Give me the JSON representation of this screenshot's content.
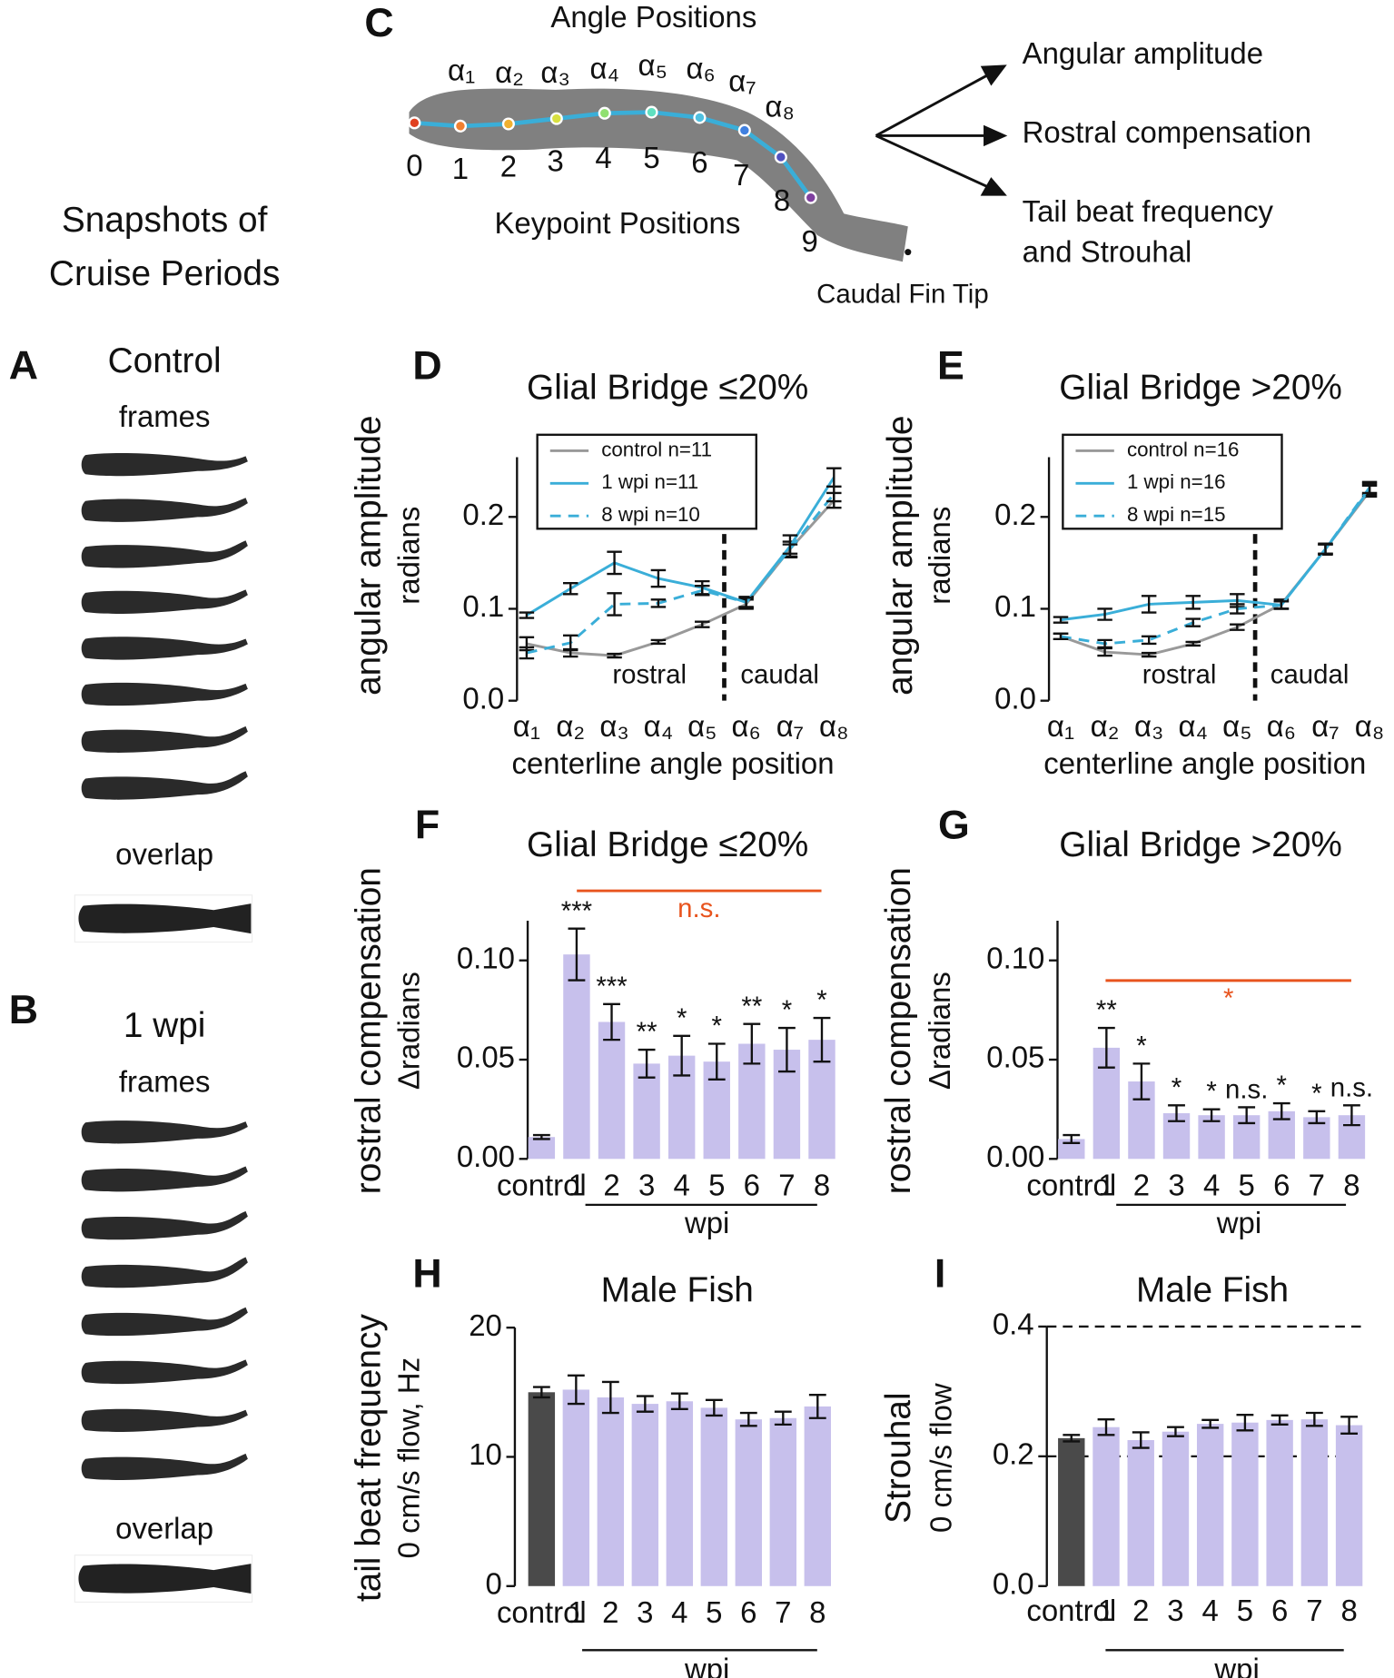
{
  "left_column": {
    "heading": [
      "Snapshots of",
      "Cruise Periods"
    ],
    "panel_a": {
      "letter": "A",
      "title": "Control",
      "frames_label": "frames",
      "overlap_label": "overlap"
    },
    "panel_b": {
      "letter": "B",
      "title": "1 wpi",
      "frames_label": "frames",
      "overlap_label": "overlap"
    }
  },
  "diagram": {
    "letter": "C",
    "angle_title": "Angle Positions",
    "keypoint_title": "Keypoint Positions",
    "angle_labels": [
      "α₁",
      "α₂",
      "α₃",
      "α₄",
      "α₅",
      "α₆",
      "α₇",
      "α₈"
    ],
    "keypoint_labels": [
      "0",
      "1",
      "2",
      "3",
      "4",
      "5",
      "6",
      "7",
      "8",
      "9"
    ],
    "fin_tip_label": "Caudal Fin Tip",
    "outputs": [
      [
        "Angular amplitude"
      ],
      [
        "Rostral compensation"
      ],
      [
        "Tail beat frequency",
        "and Strouhal"
      ]
    ]
  },
  "chart_data": [
    {
      "type": "line",
      "panel_label": "D",
      "title": "Glial Bridge ≤20%",
      "y_label": [
        "angular amplitude",
        "radians"
      ],
      "x_label": "centerline angle position",
      "categories": [
        "α₁",
        "α₂",
        "α₃",
        "α₄",
        "α₅",
        "α₆",
        "α₇",
        "α₈"
      ],
      "region_labels": [
        "rostral",
        "caudal"
      ],
      "ylim": [
        0,
        0.265
      ],
      "yticks": [
        {
          "value": 0,
          "label": "0.0"
        },
        {
          "value": 0.1,
          "label": "0.1"
        },
        {
          "value": 0.2,
          "label": "0.2"
        }
      ],
      "series": [
        {
          "name": "control n=11",
          "color": "#999999",
          "dash": false,
          "values": [
            0.062,
            0.052,
            0.049,
            0.064,
            0.083,
            0.105,
            0.165,
            0.218
          ],
          "errors": [
            0.007,
            0.004,
            0.002,
            0.002,
            0.003,
            0.005,
            0.008,
            0.008
          ]
        },
        {
          "name": "1 wpi n=11",
          "color": "#3aaed8",
          "dash": false,
          "values": [
            0.093,
            0.122,
            0.15,
            0.133,
            0.123,
            0.107,
            0.168,
            0.243
          ],
          "errors": [
            0.003,
            0.006,
            0.012,
            0.009,
            0.007,
            0.006,
            0.012,
            0.01
          ]
        },
        {
          "name": "8 wpi n=10",
          "color": "#3aaed8",
          "dash": true,
          "values": [
            0.052,
            0.063,
            0.105,
            0.106,
            0.12,
            0.107,
            0.165,
            0.225
          ],
          "errors": [
            0.006,
            0.008,
            0.012,
            0.004,
            0.005,
            0.005,
            0.005,
            0.008
          ]
        }
      ]
    },
    {
      "type": "line",
      "panel_label": "E",
      "title": "Glial Bridge >20%",
      "y_label": [
        "angular amplitude",
        "radians"
      ],
      "x_label": "centerline angle position",
      "categories": [
        "α₁",
        "α₂",
        "α₃",
        "α₄",
        "α₅",
        "α₆",
        "α₇",
        "α₈"
      ],
      "region_labels": [
        "rostral",
        "caudal"
      ],
      "ylim": [
        0,
        0.265
      ],
      "yticks": [
        {
          "value": 0,
          "label": "0.0"
        },
        {
          "value": 0.1,
          "label": "0.1"
        },
        {
          "value": 0.2,
          "label": "0.2"
        }
      ],
      "series": [
        {
          "name": "control n=16",
          "color": "#999999",
          "dash": false,
          "values": [
            0.07,
            0.053,
            0.05,
            0.062,
            0.08,
            0.105,
            0.165,
            0.228
          ],
          "errors": [
            0.003,
            0.004,
            0.002,
            0.002,
            0.003,
            0.005,
            0.005,
            0.006
          ]
        },
        {
          "name": "1 wpi n=16",
          "color": "#3aaed8",
          "dash": false,
          "values": [
            0.088,
            0.094,
            0.105,
            0.107,
            0.109,
            0.104,
            0.165,
            0.23
          ],
          "errors": [
            0.003,
            0.006,
            0.009,
            0.007,
            0.007,
            0.004,
            0.006,
            0.006
          ]
        },
        {
          "name": "8 wpi n=15",
          "color": "#3aaed8",
          "dash": true,
          "values": [
            0.07,
            0.062,
            0.066,
            0.085,
            0.1,
            0.104,
            0.165,
            0.232
          ],
          "errors": [
            0.003,
            0.004,
            0.004,
            0.004,
            0.005,
            0.004,
            0.005,
            0.006
          ]
        }
      ]
    },
    {
      "type": "bar",
      "panel_label": "F",
      "title": "Glial Bridge ≤20%",
      "y_label": [
        "rostral compensation",
        "Δradians"
      ],
      "x_label": "wpi",
      "categories": [
        "control",
        "1",
        "2",
        "3",
        "4",
        "5",
        "6",
        "7",
        "8"
      ],
      "values": [
        0.011,
        0.103,
        0.069,
        0.048,
        0.052,
        0.049,
        0.058,
        0.055,
        0.06
      ],
      "errors": [
        0.001,
        0.013,
        0.009,
        0.007,
        0.01,
        0.009,
        0.01,
        0.011,
        0.011
      ],
      "significance": [
        null,
        "***",
        "***",
        "**",
        "*",
        "*",
        "**",
        "*",
        "*"
      ],
      "colors": [
        "#c7c0ec",
        "#c7c0ec",
        "#c7c0ec",
        "#c7c0ec",
        "#c7c0ec",
        "#c7c0ec",
        "#c7c0ec",
        "#c7c0ec",
        "#c7c0ec"
      ],
      "bracket": {
        "label": "n.s.",
        "color": "#e8541e"
      },
      "ylim": [
        0,
        0.12
      ],
      "yticks": [
        {
          "value": 0,
          "label": "0.00"
        },
        {
          "value": 0.05,
          "label": "0.05"
        },
        {
          "value": 0.1,
          "label": "0.10"
        }
      ]
    },
    {
      "type": "bar",
      "panel_label": "G",
      "title": "Glial Bridge >20%",
      "y_label": [
        "rostral compensation",
        "Δradians"
      ],
      "x_label": "wpi",
      "categories": [
        "control",
        "1",
        "2",
        "3",
        "4",
        "5",
        "6",
        "7",
        "8"
      ],
      "values": [
        0.01,
        0.056,
        0.039,
        0.023,
        0.022,
        0.022,
        0.024,
        0.021,
        0.022
      ],
      "errors": [
        0.002,
        0.01,
        0.009,
        0.004,
        0.003,
        0.004,
        0.004,
        0.003,
        0.005
      ],
      "significance": [
        null,
        "**",
        "*",
        "*",
        "*",
        "n.s.",
        "*",
        "*",
        "n.s."
      ],
      "colors": [
        "#c7c0ec",
        "#c7c0ec",
        "#c7c0ec",
        "#c7c0ec",
        "#c7c0ec",
        "#c7c0ec",
        "#c7c0ec",
        "#c7c0ec",
        "#c7c0ec"
      ],
      "bracket": {
        "label": "*",
        "color": "#e8541e"
      },
      "ylim": [
        0,
        0.12
      ],
      "yticks": [
        {
          "value": 0,
          "label": "0.00"
        },
        {
          "value": 0.05,
          "label": "0.05"
        },
        {
          "value": 0.1,
          "label": "0.10"
        }
      ]
    },
    {
      "type": "bar",
      "panel_label": "H",
      "title": "Male Fish",
      "y_label": [
        "tail beat frequency",
        "0 cm/s flow, Hz"
      ],
      "x_label": "wpi",
      "categories": [
        "control",
        "1",
        "2",
        "3",
        "4",
        "5",
        "6",
        "7",
        "8"
      ],
      "values": [
        15.0,
        15.2,
        14.6,
        14.1,
        14.3,
        13.8,
        12.9,
        13.0,
        13.9
      ],
      "errors": [
        0.4,
        1.1,
        1.2,
        0.6,
        0.6,
        0.6,
        0.5,
        0.5,
        0.9
      ],
      "colors": [
        "#4a4a4a",
        "#c7c0ec",
        "#c7c0ec",
        "#c7c0ec",
        "#c7c0ec",
        "#c7c0ec",
        "#c7c0ec",
        "#c7c0ec",
        "#c7c0ec"
      ],
      "ylim": [
        0,
        20
      ],
      "yticks": [
        0,
        10,
        20
      ]
    },
    {
      "type": "bar",
      "panel_label": "I",
      "title": "Male Fish",
      "y_label": [
        "Strouhal",
        "0 cm/s flow"
      ],
      "x_label": "wpi",
      "categories": [
        "control",
        "1",
        "2",
        "3",
        "4",
        "5",
        "6",
        "7",
        "8"
      ],
      "values": [
        0.228,
        0.245,
        0.225,
        0.238,
        0.25,
        0.252,
        0.256,
        0.257,
        0.248
      ],
      "errors": [
        0.005,
        0.012,
        0.012,
        0.007,
        0.006,
        0.012,
        0.007,
        0.01,
        0.013
      ],
      "colors": [
        "#4a4a4a",
        "#c7c0ec",
        "#c7c0ec",
        "#c7c0ec",
        "#c7c0ec",
        "#c7c0ec",
        "#c7c0ec",
        "#c7c0ec",
        "#c7c0ec"
      ],
      "reference_lines": [
        0.2,
        0.4
      ],
      "ylim": [
        0,
        0.4
      ],
      "yticks": [
        {
          "value": 0,
          "label": "0.0"
        },
        {
          "value": 0.2,
          "label": "0.2"
        },
        {
          "value": 0.4,
          "label": "0.4"
        }
      ]
    }
  ]
}
